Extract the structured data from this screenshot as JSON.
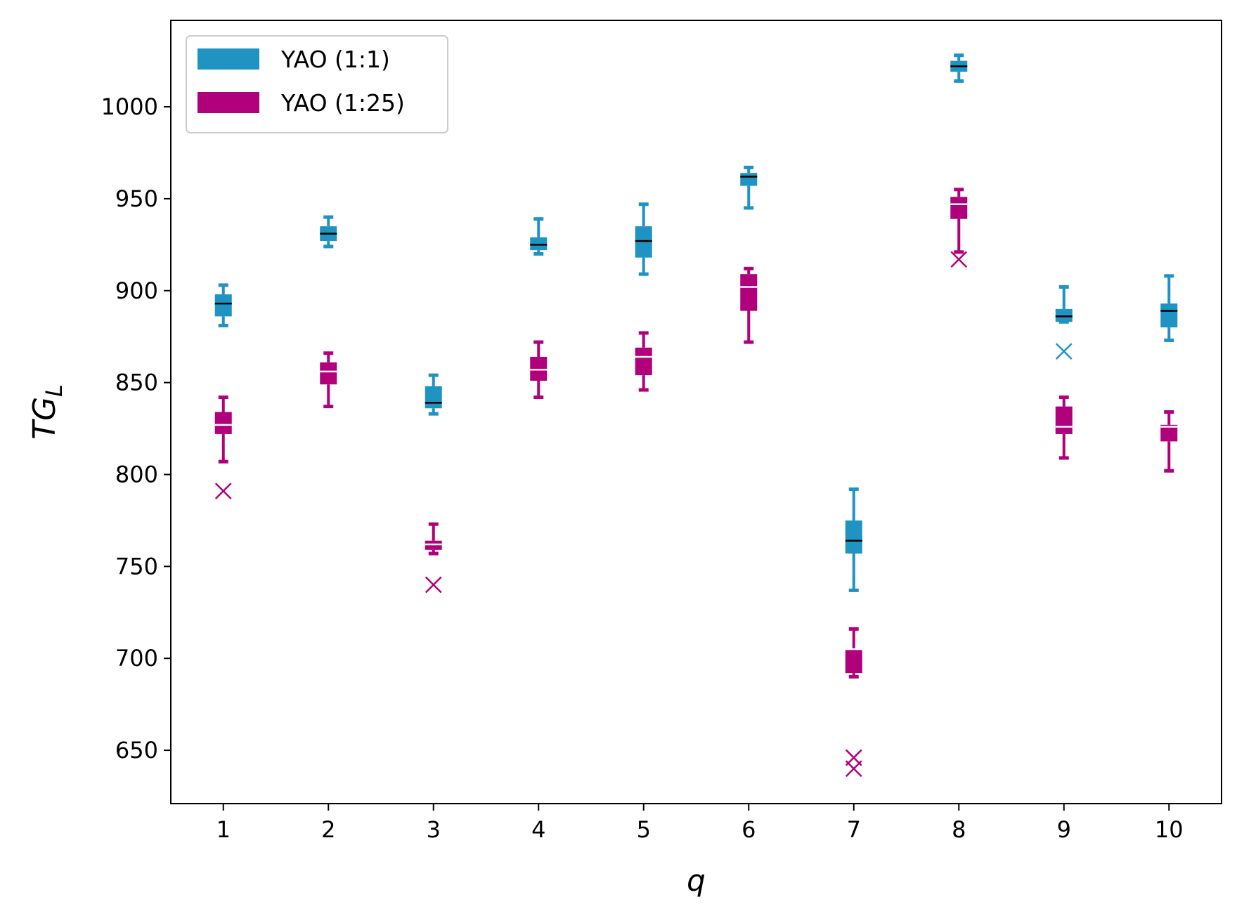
{
  "chart_data": {
    "type": "box",
    "xlabel": "q",
    "ylabel": {
      "main": "TG",
      "sub": "L"
    },
    "categories": [
      "1",
      "2",
      "3",
      "4",
      "5",
      "6",
      "7",
      "8",
      "9",
      "10"
    ],
    "xlim": [
      0.5,
      10.5
    ],
    "ylim": [
      621,
      1047
    ],
    "yticks": [
      650,
      700,
      750,
      800,
      850,
      900,
      950,
      1000
    ],
    "grid": false,
    "legend_position": "top-left",
    "series": [
      {
        "name": "YAO (1:1)",
        "color": "#1f93c2",
        "median_color": "#000000",
        "boxes": [
          {
            "x": 1,
            "whislo": 881,
            "q1": 886,
            "med": 893,
            "q3": 898,
            "whishi": 903,
            "fliers": []
          },
          {
            "x": 2,
            "whislo": 924,
            "q1": 927,
            "med": 931,
            "q3": 935,
            "whishi": 940,
            "fliers": []
          },
          {
            "x": 3,
            "whislo": 833,
            "q1": 836,
            "med": 839,
            "q3": 848,
            "whishi": 854,
            "fliers": []
          },
          {
            "x": 4,
            "whislo": 920,
            "q1": 922,
            "med": 925,
            "q3": 929,
            "whishi": 939,
            "fliers": []
          },
          {
            "x": 5,
            "whislo": 909,
            "q1": 918,
            "med": 927,
            "q3": 935,
            "whishi": 947,
            "fliers": []
          },
          {
            "x": 6,
            "whislo": 945,
            "q1": 957,
            "med": 962,
            "q3": 964,
            "whishi": 967,
            "fliers": []
          },
          {
            "x": 7,
            "whislo": 737,
            "q1": 757,
            "med": 764,
            "q3": 775,
            "whishi": 792,
            "fliers": []
          },
          {
            "x": 8,
            "whislo": 1014,
            "q1": 1019,
            "med": 1022,
            "q3": 1025,
            "whishi": 1028,
            "fliers": []
          },
          {
            "x": 9,
            "whislo": 883,
            "q1": 883,
            "med": 886,
            "q3": 890,
            "whishi": 902,
            "fliers": [
              867
            ]
          },
          {
            "x": 10,
            "whislo": 873,
            "q1": 880,
            "med": 889,
            "q3": 893,
            "whishi": 908,
            "fliers": []
          }
        ]
      },
      {
        "name": "YAO (1:25)",
        "color": "#b0007c",
        "median_color": "#ffffff",
        "boxes": [
          {
            "x": 1,
            "whislo": 807,
            "q1": 822,
            "med": 827,
            "q3": 834,
            "whishi": 842,
            "fliers": [
              791
            ]
          },
          {
            "x": 2,
            "whislo": 837,
            "q1": 849,
            "med": 856,
            "q3": 861,
            "whishi": 866,
            "fliers": []
          },
          {
            "x": 3,
            "whislo": 757,
            "q1": 759,
            "med": 762,
            "q3": 764,
            "whishi": 773,
            "fliers": [
              740
            ]
          },
          {
            "x": 4,
            "whislo": 842,
            "q1": 851,
            "med": 857,
            "q3": 864,
            "whishi": 872,
            "fliers": []
          },
          {
            "x": 5,
            "whislo": 846,
            "q1": 854,
            "med": 864,
            "q3": 869,
            "whishi": 877,
            "fliers": []
          },
          {
            "x": 6,
            "whislo": 872,
            "q1": 889,
            "med": 902,
            "q3": 909,
            "whishi": 912,
            "fliers": []
          },
          {
            "x": 7,
            "whislo": 690,
            "q1": 692,
            "med": 705,
            "q3": 705,
            "whishi": 716,
            "fliers": [
              646,
              640
            ]
          },
          {
            "x": 8,
            "whislo": 921,
            "q1": 939,
            "med": 947,
            "q3": 951,
            "whishi": 955,
            "fliers": [
              917
            ]
          },
          {
            "x": 9,
            "whislo": 809,
            "q1": 822,
            "med": 826,
            "q3": 837,
            "whishi": 842,
            "fliers": []
          },
          {
            "x": 10,
            "whislo": 802,
            "q1": 818,
            "med": 826,
            "q3": 827,
            "whishi": 834,
            "fliers": []
          }
        ]
      }
    ]
  }
}
